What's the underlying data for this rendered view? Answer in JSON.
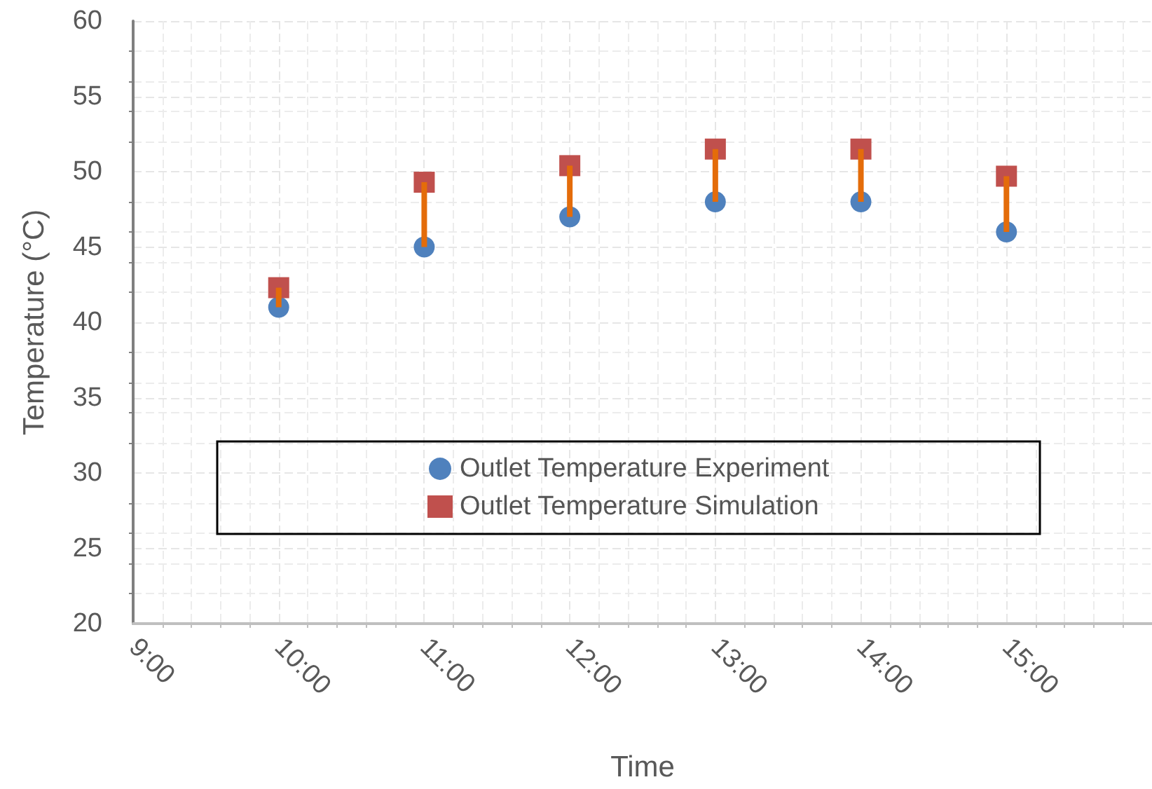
{
  "chart_data": {
    "type": "scatter",
    "xlabel": "Time",
    "ylabel": "Temperature (°C)",
    "x": [
      10,
      11,
      12,
      13,
      14,
      15
    ],
    "series": [
      {
        "name": "Outlet Temperature Experiment",
        "color": "#4f81bd",
        "marker": "circle",
        "values": [
          41,
          45,
          47,
          48,
          48,
          46
        ],
        "errors": [
          [
            41,
            42.3
          ],
          [
            45,
            49.3
          ],
          [
            47,
            50.4
          ],
          [
            48,
            51.5
          ],
          [
            48,
            51.5
          ],
          [
            46,
            49.7
          ]
        ]
      },
      {
        "name": "Outlet Temperature Simulation",
        "color": "#c0504d",
        "marker": "square",
        "values": [
          42.3,
          49.3,
          50.4,
          51.5,
          51.5,
          49.7
        ]
      }
    ],
    "xlim": [
      9,
      16
    ],
    "xticks": [
      {
        "value": 9,
        "label": "9:00"
      },
      {
        "value": 10,
        "label": "10:00"
      },
      {
        "value": 11,
        "label": "11:00"
      },
      {
        "value": 12,
        "label": "12:00"
      },
      {
        "value": 13,
        "label": "13:00"
      },
      {
        "value": 14,
        "label": "14:00"
      },
      {
        "value": 15,
        "label": "15:00"
      }
    ],
    "ylim": [
      20,
      60
    ],
    "yticks": [
      20,
      25,
      30,
      35,
      40,
      45,
      50,
      55,
      60
    ],
    "grid": true,
    "legend": "bottom"
  }
}
